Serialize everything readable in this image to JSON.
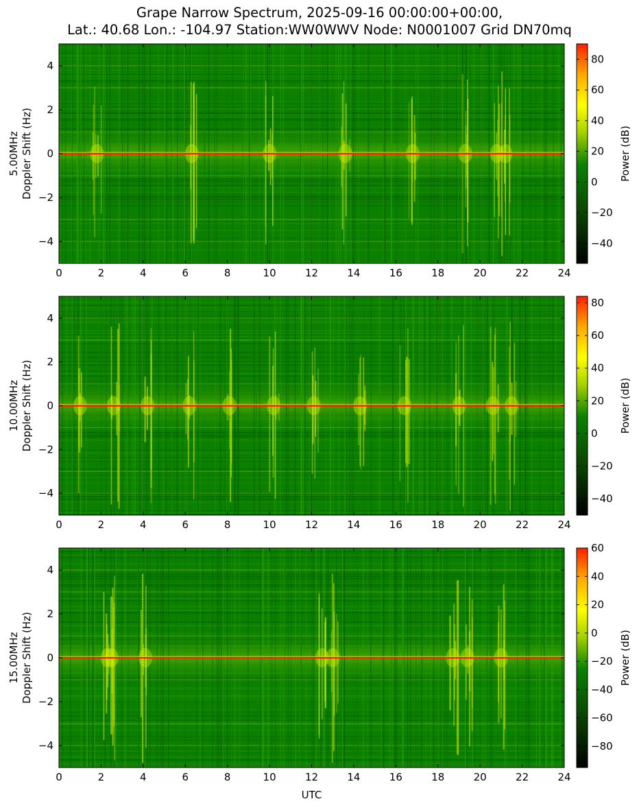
{
  "title_line1": "Grape Narrow Spectrum, 2025-09-16 00:00:00+00:00,",
  "title_line2": "Lat.: 40.68 Lon.: -104.97 Station:WW0WWV Node: N0001007 Grid DN70mq",
  "colors": {
    "black": "#000000",
    "dark_green": "#0a3a00",
    "green": "#0a8200",
    "yellow_green": "#a8d400",
    "yellow": "#ffff00",
    "orange": "#ffaa00",
    "red": "#ff1e00"
  },
  "chart_data": [
    {
      "type": "heatmap",
      "panel_label": "5.00MHz",
      "ylabel": "Doppler Shift (Hz)",
      "xlabel": "",
      "colorbar_label": "Power (dB)",
      "xlim": [
        0,
        24
      ],
      "ylim": [
        -5,
        5
      ],
      "xticks": [
        "0",
        "2",
        "4",
        "6",
        "8",
        "10",
        "12",
        "14",
        "16",
        "18",
        "20",
        "22",
        "24"
      ],
      "yticks": [
        "4",
        "2",
        "0",
        "−2",
        "−4"
      ],
      "colorbar_range": [
        -53,
        90
      ],
      "colorbar_ticks": [
        "80",
        "60",
        "40",
        "20",
        "0",
        "−20",
        "−40"
      ],
      "carrier_doppler_hz": 0,
      "bright_bursts_utc": [
        1.8,
        6.3,
        10.0,
        13.6,
        16.8,
        19.3,
        20.8,
        21.2
      ]
    },
    {
      "type": "heatmap",
      "panel_label": "10.00MHz",
      "ylabel": "Doppler Shift (Hz)",
      "xlabel": "",
      "colorbar_label": "Power (dB)",
      "xlim": [
        0,
        24
      ],
      "ylim": [
        -5,
        5
      ],
      "xticks": [
        "0",
        "2",
        "4",
        "6",
        "8",
        "10",
        "12",
        "14",
        "16",
        "18",
        "20",
        "22",
        "24"
      ],
      "yticks": [
        "4",
        "2",
        "0",
        "−2",
        "−4"
      ],
      "colorbar_range": [
        -50,
        84
      ],
      "colorbar_ticks": [
        "80",
        "60",
        "40",
        "20",
        "0",
        "−20",
        "−40"
      ],
      "carrier_doppler_hz": 0,
      "bright_bursts_utc": [
        1.0,
        2.6,
        4.2,
        6.2,
        8.1,
        10.2,
        12.1,
        14.3,
        16.4,
        19.0,
        20.6,
        21.5
      ]
    },
    {
      "type": "heatmap",
      "panel_label": "15.00MHz",
      "ylabel": "Doppler Shift (Hz)",
      "xlabel": "UTC",
      "colorbar_label": "Power (dB)",
      "xlim": [
        0,
        24
      ],
      "ylim": [
        -5,
        5
      ],
      "xticks": [
        "0",
        "2",
        "4",
        "6",
        "8",
        "10",
        "12",
        "14",
        "16",
        "18",
        "20",
        "22",
        "24"
      ],
      "yticks": [
        "4",
        "2",
        "0",
        "−2",
        "−4"
      ],
      "colorbar_range": [
        -95,
        60
      ],
      "colorbar_ticks": [
        "60",
        "40",
        "20",
        "0",
        "−20",
        "−40",
        "−60",
        "−80"
      ],
      "carrier_doppler_hz": 0,
      "bright_bursts_utc": [
        2.3,
        2.5,
        4.1,
        12.5,
        13.0,
        18.7,
        19.4,
        21.0
      ]
    }
  ]
}
